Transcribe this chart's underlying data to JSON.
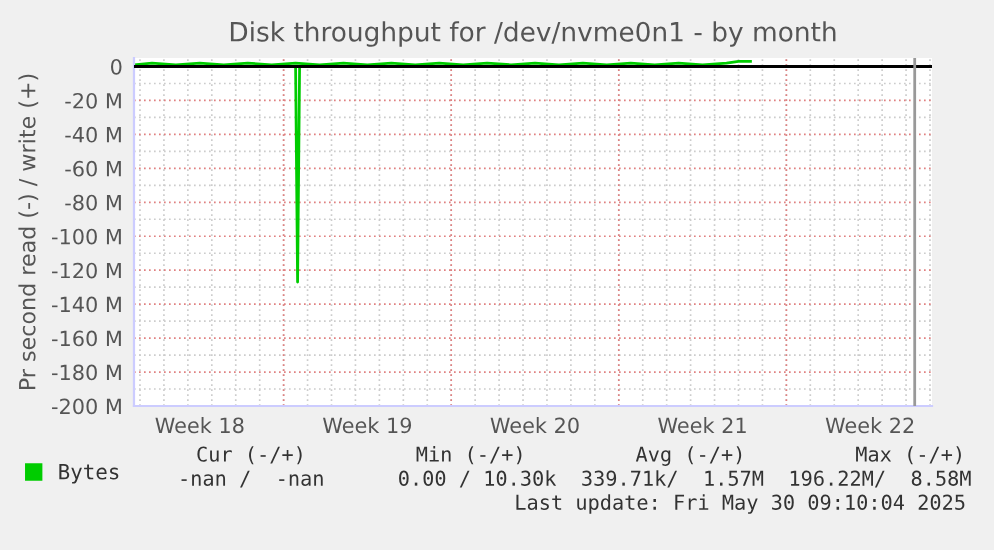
{
  "chart_data": {
    "type": "line",
    "title": "Disk throughput for /dev/nvme0n1 - by month",
    "ylabel": "Pr second read (-) / write (+)",
    "series": [
      {
        "name": "Bytes",
        "color": "#00cc00",
        "x": [
          "2025-04-28T18:00",
          "2025-04-30T00:00",
          "2025-05-02T00:00",
          "2025-05-04T00:00",
          "2025-05-05T12:00",
          "2025-05-05T14:00",
          "2025-05-05T16:00",
          "2025-05-07T00:00",
          "2025-05-10T00:00",
          "2025-05-13T00:00",
          "2025-05-16T00:00",
          "2025-05-19T00:00",
          "2025-05-22T00:00",
          "2025-05-24T12:00"
        ],
        "values": [
          0,
          0,
          0,
          0,
          0,
          -127,
          0,
          0,
          0,
          0,
          0,
          0,
          0,
          0
        ]
      },
      {
        "color": "#00cc00",
        "x": [
          "2025-04-28T18:00",
          "2025-04-29T12:00",
          "2025-04-30T12:00",
          "2025-05-01T12:00",
          "2025-05-02T12:00",
          "2025-05-03T12:00",
          "2025-05-04T12:00",
          "2025-05-05T12:00",
          "2025-05-06T12:00",
          "2025-05-07T12:00",
          "2025-05-08T12:00",
          "2025-05-09T12:00",
          "2025-05-10T12:00",
          "2025-05-11T12:00",
          "2025-05-12T12:00",
          "2025-05-13T12:00",
          "2025-05-14T12:00",
          "2025-05-15T12:00",
          "2025-05-16T12:00",
          "2025-05-17T12:00",
          "2025-05-18T12:00",
          "2025-05-19T12:00",
          "2025-05-20T12:00",
          "2025-05-21T12:00",
          "2025-05-22T12:00",
          "2025-05-23T12:00",
          "2025-05-24T00:00",
          "2025-05-24T12:00"
        ],
        "values": [
          1,
          2,
          1,
          2,
          1,
          2,
          1,
          2,
          1,
          2,
          1,
          2,
          1,
          2,
          1,
          2,
          1,
          2,
          1,
          2,
          1,
          2,
          1,
          2,
          1,
          2,
          3,
          3
        ]
      }
    ],
    "xlim": [
      "2025-04-28T18:00",
      "2025-06-01T02:00"
    ],
    "xticks": [
      {
        "value": "2025-05-01T12:00",
        "label": "Week 18"
      },
      {
        "value": "2025-05-05T00:00",
        "label": null
      },
      {
        "value": "2025-05-08T12:00",
        "label": "Week 19"
      },
      {
        "value": "2025-05-12T00:00",
        "label": null
      },
      {
        "value": "2025-05-15T12:00",
        "label": "Week 20"
      },
      {
        "value": "2025-05-19T00:00",
        "label": null
      },
      {
        "value": "2025-05-22T12:00",
        "label": "Week 21"
      },
      {
        "value": "2025-05-26T00:00",
        "label": null
      },
      {
        "value": "2025-05-29T12:00",
        "label": "Week 22"
      }
    ],
    "ylim": [
      -200,
      5
    ],
    "yticks": [
      0,
      {
        "value": -20,
        "label": "-20 M"
      },
      {
        "value": -40,
        "label": "-40 M"
      },
      {
        "value": -60,
        "label": "-60 M"
      },
      {
        "value": -80,
        "label": "-80 M"
      },
      {
        "value": -100,
        "label": "-100 M"
      },
      {
        "value": -120,
        "label": "-120 M"
      },
      {
        "value": -140,
        "label": "-140 M"
      },
      {
        "value": -160,
        "label": "-160 M"
      },
      {
        "value": -180,
        "label": "-180 M"
      },
      {
        "value": -200,
        "label": "-200 M"
      }
    ],
    "ref_lines": [
      {
        "axis": "y",
        "value": 0,
        "color": "#000000"
      },
      {
        "axis": "x",
        "value": "2025-05-31T08:40",
        "color": "#999999"
      }
    ],
    "grid": true,
    "legend": "bottom left",
    "annotations": [
      "Cur (-/+)         Min (-/+)         Avg (-/+)         Max (-/+)",
      "-nan /  -nan      0.00 / 10.30k  339.71k/  1.57M  196.22M/  8.58M",
      "Last update: Fri May 30 09:10:04 2025"
    ]
  }
}
